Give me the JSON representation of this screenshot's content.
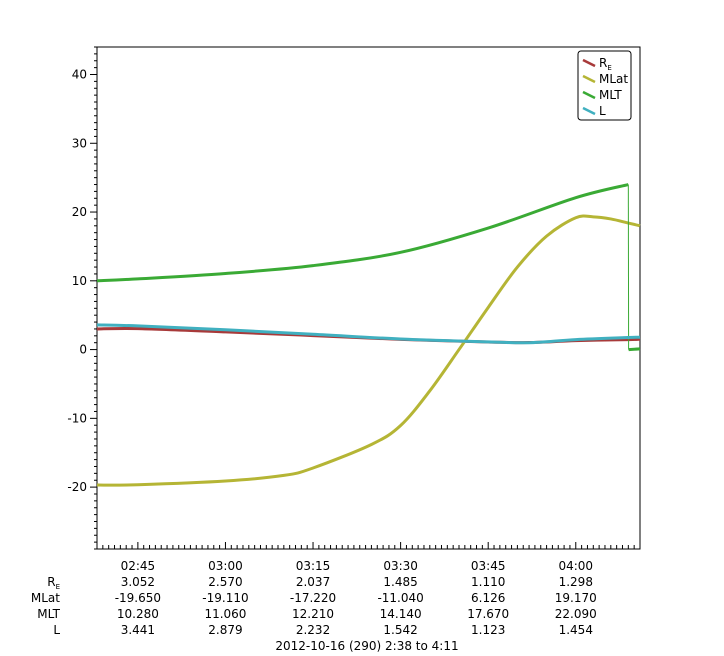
{
  "chart_data": {
    "type": "line",
    "title": "",
    "xlabel": "2012-10-16 (290) 2:38 to 4:11",
    "ylabel": "",
    "xlim_minutes": [
      158,
      251
    ],
    "ylim": [
      -29,
      44
    ],
    "y_ticks": [
      "-20",
      "-10",
      "0",
      "10",
      "20",
      "30",
      "40"
    ],
    "x_ticks": [
      "02:45",
      "03:00",
      "03:15",
      "03:30",
      "03:45",
      "04:00"
    ],
    "grid": false,
    "legend_position": "top-right",
    "series": [
      {
        "name": "RE",
        "color": "#a83a3a",
        "x": [
          158,
          165,
          180,
          195,
          210,
          225,
          232,
          240,
          249,
          251
        ],
        "y": [
          3.0,
          3.052,
          2.57,
          2.037,
          1.485,
          1.11,
          1.02,
          1.298,
          1.45,
          1.5
        ]
      },
      {
        "name": "MLat",
        "color": "#b5b535",
        "x": [
          158,
          165,
          180,
          190,
          195,
          205,
          210,
          215,
          220,
          225,
          230,
          235,
          240,
          243,
          246,
          249,
          251
        ],
        "y": [
          -19.7,
          -19.65,
          -19.11,
          -18.3,
          -17.22,
          -13.8,
          -11.04,
          -6.0,
          0.0,
          6.126,
          12.0,
          16.5,
          19.17,
          19.3,
          19.0,
          18.4,
          18.0
        ]
      },
      {
        "name": "MLT",
        "color": "#3aaa35",
        "x": [
          158,
          165,
          180,
          195,
          210,
          225,
          240,
          249,
          249.05,
          251
        ],
        "y": [
          10.0,
          10.28,
          11.06,
          12.21,
          14.14,
          17.67,
          22.09,
          24.0,
          0.0,
          0.1
        ]
      },
      {
        "name": "L",
        "color": "#40b0c0",
        "x": [
          158,
          165,
          180,
          195,
          210,
          225,
          232,
          240,
          249,
          251
        ],
        "y": [
          3.6,
          3.441,
          2.879,
          2.232,
          1.542,
          1.123,
          1.0,
          1.454,
          1.75,
          1.8
        ]
      }
    ],
    "table": {
      "rows": [
        {
          "label": "R",
          "sub": "E",
          "values": [
            "3.052",
            "2.570",
            "2.037",
            "1.485",
            "1.110",
            "1.298"
          ]
        },
        {
          "label": "MLat",
          "sub": "",
          "values": [
            "-19.650",
            "-19.110",
            "-17.220",
            "-11.040",
            "6.126",
            "19.170"
          ]
        },
        {
          "label": "MLT",
          "sub": "",
          "values": [
            "10.280",
            "11.060",
            "12.210",
            "14.140",
            "17.670",
            "22.090"
          ]
        },
        {
          "label": "L",
          "sub": "",
          "values": [
            "3.441",
            "2.879",
            "2.232",
            "1.542",
            "1.123",
            "1.454"
          ]
        }
      ]
    },
    "legend": [
      {
        "label": "R",
        "sub": "E",
        "color": "#a83a3a"
      },
      {
        "label": "MLat",
        "sub": "",
        "color": "#b5b535"
      },
      {
        "label": "MLT",
        "sub": "",
        "color": "#3aaa35"
      },
      {
        "label": "L",
        "sub": "",
        "color": "#40b0c0"
      }
    ]
  }
}
